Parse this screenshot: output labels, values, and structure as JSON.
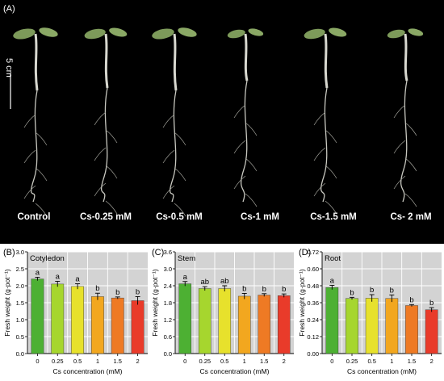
{
  "photo": {
    "panel_label": "(A)",
    "scale_label": "5 cm",
    "captions": [
      "Control",
      "Cs-0.25 mM",
      "Cs-0.5 mM",
      "Cs-1 mM",
      "Cs-1.5 mM",
      "Cs- 2 mM"
    ]
  },
  "colors": [
    "#4db033",
    "#a6d62e",
    "#e7e12c",
    "#f2a71f",
    "#ee7a24",
    "#e93b2a"
  ],
  "chart_data": [
    {
      "type": "bar",
      "panel_label": "(B)",
      "title": "Cotyledon",
      "categories": [
        "0",
        "0.25",
        "0.5",
        "1",
        "1.5",
        "2"
      ],
      "values": [
        2.2,
        2.05,
        1.98,
        1.68,
        1.64,
        1.56
      ],
      "errors": [
        0.05,
        0.08,
        0.08,
        0.1,
        0.03,
        0.12
      ],
      "letters": [
        "a",
        "a",
        "a",
        "b",
        "b",
        "b"
      ],
      "xlabel": "Cs concentration (mM)",
      "ylabel": "Fresh weight (g·pot⁻¹)",
      "ylim": [
        0,
        3.0
      ],
      "yticks": [
        "0.0",
        "0.5",
        "1.0",
        "1.5",
        "2.0",
        "2.5",
        "3.0"
      ]
    },
    {
      "type": "bar",
      "panel_label": "(C)",
      "title": "Stem",
      "categories": [
        "0",
        "0.25",
        "0.5",
        "1",
        "1.5",
        "2"
      ],
      "values": [
        2.47,
        2.3,
        2.3,
        2.03,
        2.07,
        2.05
      ],
      "errors": [
        0.08,
        0.07,
        0.1,
        0.1,
        0.05,
        0.06
      ],
      "letters": [
        "a",
        "ab",
        "ab",
        "b",
        "b",
        "b"
      ],
      "xlabel": "Cs concentration (mM)",
      "ylabel": "Fresh weight (g·pot⁻¹)",
      "ylim": [
        0,
        3.6
      ],
      "yticks": [
        "0.0",
        "0.6",
        "1.2",
        "1.8",
        "2.4",
        "3.0",
        "3.6"
      ]
    },
    {
      "type": "bar",
      "panel_label": "(D)",
      "title": "Root",
      "categories": [
        "0",
        "0.25",
        "0.5",
        "1",
        "1.5",
        "2"
      ],
      "values": [
        0.468,
        0.39,
        0.392,
        0.39,
        0.34,
        0.31
      ],
      "errors": [
        0.015,
        0.008,
        0.025,
        0.025,
        0.007,
        0.015
      ],
      "letters": [
        "a",
        "b",
        "b",
        "b",
        "b",
        "b"
      ],
      "xlabel": "Cs concentration (mM)",
      "ylabel": "Fresh weight (g·pot⁻¹)",
      "ylim": [
        0,
        0.72
      ],
      "yticks": [
        "0.00",
        "0.12",
        "0.24",
        "0.36",
        "0.48",
        "0.60",
        "0.72"
      ]
    }
  ]
}
